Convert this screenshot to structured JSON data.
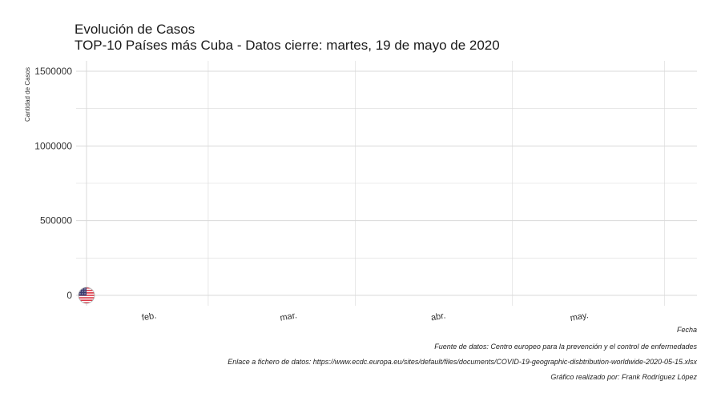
{
  "chart": {
    "title": "Evolución de Casos",
    "subtitle": "TOP-10 Países más Cuba - Datos cierre: martes, 19 de mayo de 2020",
    "caption_lines": [
      "Fuente de datos: Centro europeo para la prevención y el control de enfermedades",
      "Enlace a fichero de datos: https://www.ecdc.europa.eu/sites/default/files/documents/COVID-19-geographic-disbtribution-worldwide-2020-05-15.xlsx",
      "Gráfico realizado por: Frank Rodríguez López"
    ]
  },
  "chart_data": {
    "type": "scatter",
    "title": "Evolución de Casos",
    "subtitle": "TOP-10 Países más Cuba - Datos cierre: martes, 19 de mayo de 2020",
    "xlabel": "Fecha",
    "ylabel": "Cantidad de Casos",
    "x_ticks": [
      "feb.",
      "mar.",
      "abr.",
      "may."
    ],
    "y_ticks": [
      "0",
      "500000",
      "1000000",
      "1500000"
    ],
    "ylim": [
      -50000,
      1500000
    ],
    "grid": true,
    "series": [
      {
        "marker": "us-flag-icon",
        "points": [
          {
            "x": "2020-01-22",
            "y": 1
          }
        ]
      }
    ],
    "colors": {
      "grid": "#d9d9d9",
      "flag_red": "#d92b3a",
      "flag_blue": "#3c3b6e"
    }
  }
}
